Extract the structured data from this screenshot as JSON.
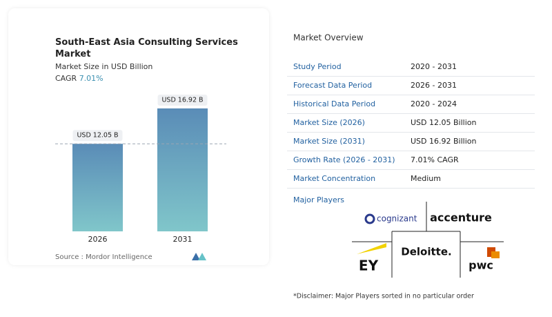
{
  "chart_data": {
    "type": "bar",
    "title": "South-East Asia Consulting Services Market",
    "subtitle": "Market Size in USD Billion",
    "cagr_label": "CAGR",
    "cagr_value": "7.01%",
    "categories": [
      "2026",
      "2031"
    ],
    "values": [
      12.05,
      16.92
    ],
    "value_labels": [
      "USD 12.05 B",
      "USD 16.92 B"
    ],
    "source": "Source :  Mordor Intelligence"
  },
  "overview": {
    "title": "Market Overview",
    "rows": [
      [
        "Study Period",
        "2020 - 2031"
      ],
      [
        "Forecast Data Period",
        "2026 - 2031"
      ],
      [
        "Historical Data Period",
        "2020 - 2024"
      ],
      [
        "Market Size (2026)",
        "USD 12.05 Billion"
      ],
      [
        "Market Size (2031)",
        "USD 16.92 Billion"
      ],
      [
        "Growth Rate (2026 - 2031)",
        "7.01% CAGR"
      ],
      [
        "Market Concentration",
        "Medium"
      ]
    ]
  },
  "players": {
    "title": "Major Players",
    "names": [
      "cognizant",
      "accenture",
      "EY",
      "Deloitte.",
      "pwc"
    ],
    "disclaimer": "*Disclaimer: Major Players sorted in no particular order"
  }
}
